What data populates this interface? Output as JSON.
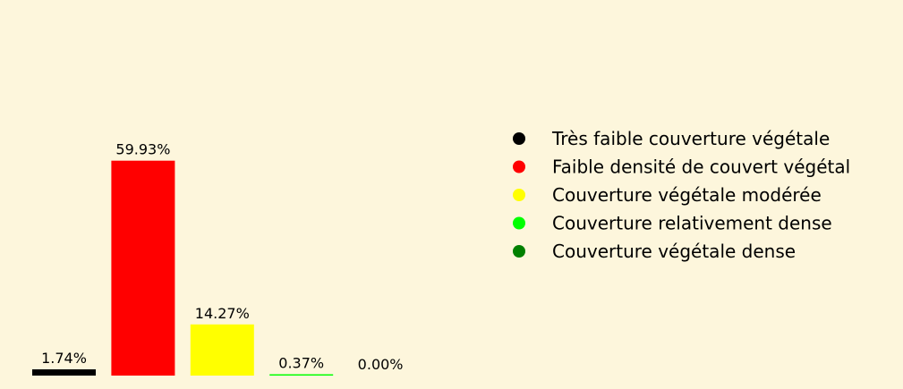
{
  "page": {
    "background": "#fdf6dc"
  },
  "chart_data": {
    "type": "bar",
    "title": "",
    "xlabel": "",
    "ylabel": "",
    "categories": [
      "Très faible couverture végétale",
      "Faible densité de couvert végétal",
      "Couverture végétale modérée",
      "Couverture relativement dense",
      "Couverture végétale dense"
    ],
    "values": [
      1.74,
      59.93,
      14.27,
      0.37,
      0.0
    ],
    "value_labels": [
      "1.74%",
      "59.93%",
      "14.27%",
      "0.37%",
      "0.00%"
    ],
    "colors": [
      "#000000",
      "#ff0000",
      "#ffff00",
      "#00ff00",
      "#008000"
    ],
    "unit": "%",
    "ylim": [
      0,
      100
    ],
    "grid": false,
    "axes_visible": false,
    "legend": {
      "position": "right",
      "marker": "circle",
      "entries": [
        {
          "label": "Très faible couverture végétale",
          "color": "#000000"
        },
        {
          "label": "Faible densité de couvert végétal",
          "color": "#ff0000"
        },
        {
          "label": "Couverture végétale modérée",
          "color": "#ffff00"
        },
        {
          "label": "Couverture relativement dense",
          "color": "#00ff00"
        },
        {
          "label": "Couverture végétale dense",
          "color": "#008000"
        }
      ]
    }
  }
}
